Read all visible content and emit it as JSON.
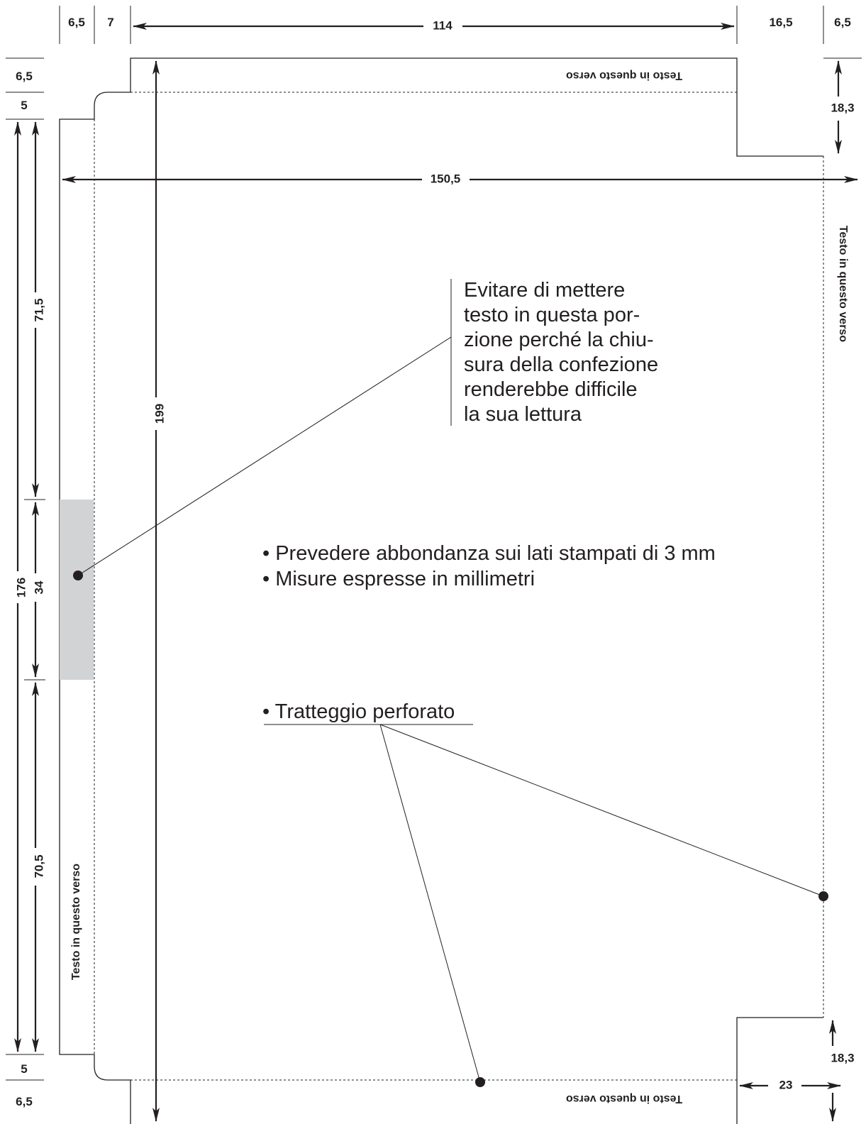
{
  "dimensions": {
    "top_6_5_left": "6,5",
    "top_7": "7",
    "top_114": "114",
    "top_16_5": "16,5",
    "top_6_5_right": "6,5",
    "left_6_5_top": "6,5",
    "left_5_top": "5",
    "left_176": "176",
    "left_71_5": "71,5",
    "left_34": "34",
    "left_70_5": "70,5",
    "left_5_bottom": "5",
    "left_6_5_bottom": "6,5",
    "width_150_5": "150,5",
    "height_199": "199",
    "right_18_3_top": "18,3",
    "right_18_3_bottom": "18,3",
    "bottom_23": "23"
  },
  "side_labels": {
    "top": "Testo in questo verso",
    "right": "Testo in questo verso",
    "left": "Testo in questo verso",
    "bottom": "Testo in questo verso"
  },
  "notes": {
    "warning_lines": [
      "Evitare di mettere",
      "testo in questa por-",
      "zione perché la chiu-",
      "sura della confezione",
      "renderebbe difficile",
      "la sua lettura"
    ],
    "bullets": [
      "• Prevedere abbondanza sui lati stampati di 3 mm",
      "• Misure espresse in millimetri"
    ],
    "perforation": "• Tratteggio perforato"
  },
  "colors": {
    "ink": "#231f20",
    "glue_area": "#d1d3d4"
  }
}
